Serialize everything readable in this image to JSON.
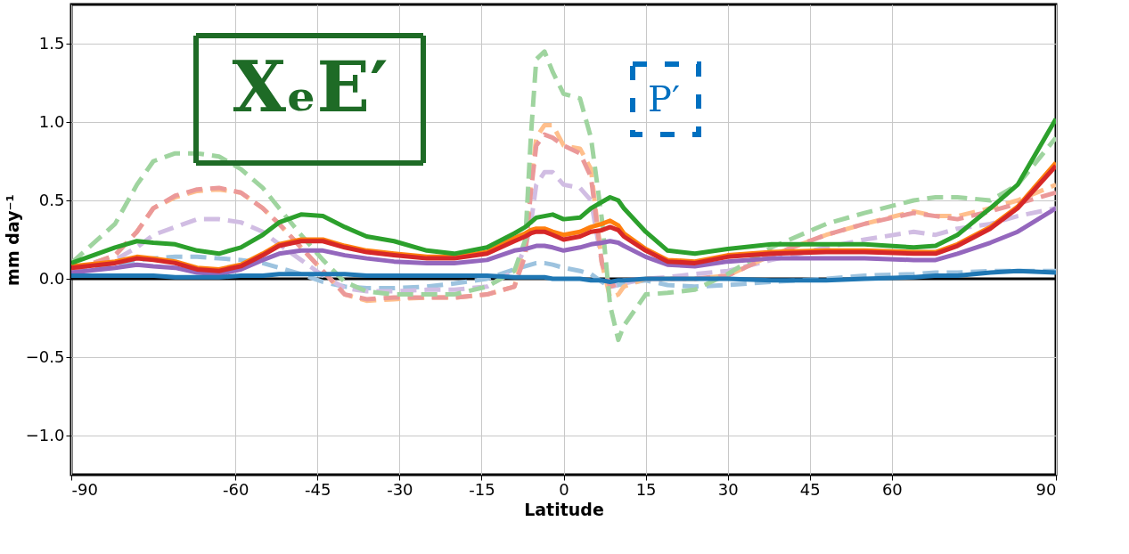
{
  "chart_data": {
    "type": "line",
    "xlabel": "Latitude",
    "ylabel": "mm day⁻¹",
    "annotations": [
      "XₑE′",
      "P′"
    ],
    "x": [
      -90,
      -82,
      -78,
      -75,
      -71,
      -67,
      -63,
      -59,
      -55,
      -52,
      -48,
      -44,
      -40,
      -36,
      -31,
      -25,
      -20,
      -14,
      -9,
      -7,
      -6,
      -5,
      -3.5,
      -2,
      0,
      3,
      5,
      7,
      8.5,
      10,
      11,
      15,
      19,
      24,
      30,
      38,
      48,
      55,
      64,
      68,
      72,
      78,
      83,
      90
    ],
    "xlim": [
      -90,
      90
    ],
    "xticks": [
      -90,
      -60,
      -45,
      -30,
      -15,
      0,
      15,
      30,
      45,
      60,
      90
    ],
    "ylim": [
      -1.25,
      1.75
    ],
    "yticks": [
      {
        "value": -1.0,
        "label": "−1.0"
      },
      {
        "value": -0.5,
        "label": "−0.5"
      },
      {
        "value": 0.0,
        "label": "0.0"
      },
      {
        "value": 0.5,
        "label": "0.5"
      },
      {
        "value": 1.0,
        "label": "1.0"
      },
      {
        "value": 1.5,
        "label": "1.5"
      }
    ],
    "grid": true,
    "ref_lines": [
      {
        "axis": "y",
        "value": 0,
        "color": "#000000"
      }
    ],
    "series": [
      {
        "color": "#9dc3df",
        "line_style": "dashed",
        "values": [
          0.05,
          0.08,
          0.12,
          0.13,
          0.14,
          0.14,
          0.13,
          0.12,
          0.1,
          0.07,
          0.03,
          -0.02,
          -0.05,
          -0.06,
          -0.06,
          -0.05,
          -0.03,
          0.0,
          0.06,
          0.08,
          0.09,
          0.1,
          0.1,
          0.09,
          0.07,
          0.05,
          0.03,
          -0.02,
          -0.05,
          -0.04,
          -0.03,
          -0.01,
          -0.04,
          -0.05,
          -0.04,
          -0.02,
          0.0,
          0.02,
          0.03,
          0.04,
          0.04,
          0.05,
          0.05,
          0.05
        ]
      },
      {
        "color": "#d1bde3",
        "line_style": "dashed",
        "values": [
          0.05,
          0.12,
          0.2,
          0.28,
          0.33,
          0.38,
          0.38,
          0.36,
          0.3,
          0.22,
          0.12,
          0.02,
          -0.06,
          -0.08,
          -0.08,
          -0.07,
          -0.07,
          -0.05,
          0.05,
          0.2,
          0.35,
          0.6,
          0.68,
          0.68,
          0.6,
          0.58,
          0.5,
          0.1,
          -0.05,
          -0.04,
          -0.03,
          0.0,
          0.01,
          0.03,
          0.05,
          0.12,
          0.2,
          0.25,
          0.3,
          0.28,
          0.32,
          0.35,
          0.4,
          0.45
        ]
      },
      {
        "color": "#ffbf8c",
        "line_style": "dashed",
        "values": [
          0.05,
          0.15,
          0.3,
          0.45,
          0.52,
          0.56,
          0.57,
          0.55,
          0.45,
          0.35,
          0.2,
          0.05,
          -0.1,
          -0.14,
          -0.13,
          -0.12,
          -0.12,
          -0.1,
          -0.05,
          0.2,
          0.6,
          0.9,
          0.98,
          0.98,
          0.85,
          0.83,
          0.7,
          0.1,
          -0.12,
          -0.1,
          -0.05,
          0.0,
          0.0,
          0.0,
          0.02,
          0.15,
          0.28,
          0.35,
          0.43,
          0.4,
          0.4,
          0.45,
          0.5,
          0.6
        ]
      },
      {
        "color": "#eb9999",
        "line_style": "dashed",
        "values": [
          0.05,
          0.15,
          0.3,
          0.45,
          0.53,
          0.57,
          0.58,
          0.55,
          0.45,
          0.35,
          0.2,
          0.05,
          -0.1,
          -0.13,
          -0.12,
          -0.12,
          -0.12,
          -0.1,
          -0.05,
          0.15,
          0.55,
          0.85,
          0.92,
          0.9,
          0.85,
          0.8,
          0.65,
          0.1,
          -0.05,
          -0.03,
          -0.01,
          0.0,
          0.0,
          0.0,
          0.02,
          0.15,
          0.28,
          0.35,
          0.42,
          0.4,
          0.38,
          0.43,
          0.48,
          0.55
        ]
      },
      {
        "color": "#9fd49f",
        "line_style": "dashed",
        "values": [
          0.1,
          0.35,
          0.6,
          0.75,
          0.8,
          0.8,
          0.78,
          0.7,
          0.58,
          0.45,
          0.28,
          0.12,
          -0.02,
          -0.08,
          -0.1,
          -0.1,
          -0.1,
          -0.05,
          0.05,
          0.25,
          0.9,
          1.4,
          1.45,
          1.32,
          1.18,
          1.15,
          0.9,
          0.38,
          -0.17,
          -0.39,
          -0.3,
          -0.1,
          -0.09,
          -0.07,
          0.03,
          0.2,
          0.35,
          0.42,
          0.5,
          0.52,
          0.52,
          0.5,
          0.6,
          0.9
        ]
      },
      {
        "color": "#9467bd",
        "line_style": "solid",
        "values": [
          0.04,
          0.07,
          0.09,
          0.08,
          0.07,
          0.04,
          0.03,
          0.06,
          0.12,
          0.16,
          0.18,
          0.18,
          0.15,
          0.13,
          0.11,
          0.1,
          0.1,
          0.12,
          0.18,
          0.19,
          0.2,
          0.21,
          0.21,
          0.2,
          0.18,
          0.2,
          0.22,
          0.23,
          0.24,
          0.23,
          0.21,
          0.14,
          0.09,
          0.08,
          0.11,
          0.13,
          0.13,
          0.13,
          0.12,
          0.12,
          0.16,
          0.23,
          0.3,
          0.45
        ]
      },
      {
        "color": "#ff7f0e",
        "line_style": "solid",
        "values": [
          0.08,
          0.11,
          0.14,
          0.13,
          0.11,
          0.07,
          0.06,
          0.09,
          0.16,
          0.22,
          0.25,
          0.25,
          0.21,
          0.18,
          0.16,
          0.14,
          0.14,
          0.17,
          0.26,
          0.29,
          0.31,
          0.32,
          0.32,
          0.3,
          0.28,
          0.3,
          0.33,
          0.35,
          0.37,
          0.34,
          0.29,
          0.19,
          0.12,
          0.11,
          0.15,
          0.17,
          0.18,
          0.18,
          0.17,
          0.17,
          0.22,
          0.33,
          0.46,
          0.74
        ]
      },
      {
        "color": "#d62728",
        "line_style": "solid",
        "values": [
          0.07,
          0.1,
          0.13,
          0.12,
          0.1,
          0.06,
          0.05,
          0.08,
          0.15,
          0.21,
          0.24,
          0.24,
          0.2,
          0.17,
          0.15,
          0.13,
          0.13,
          0.16,
          0.24,
          0.27,
          0.29,
          0.3,
          0.3,
          0.28,
          0.25,
          0.27,
          0.3,
          0.31,
          0.33,
          0.31,
          0.27,
          0.18,
          0.11,
          0.1,
          0.14,
          0.16,
          0.17,
          0.17,
          0.16,
          0.16,
          0.21,
          0.32,
          0.45,
          0.72
        ]
      },
      {
        "color": "#2ca02c",
        "line_style": "solid",
        "values": [
          0.1,
          0.2,
          0.24,
          0.23,
          0.22,
          0.18,
          0.16,
          0.2,
          0.28,
          0.36,
          0.41,
          0.4,
          0.33,
          0.27,
          0.24,
          0.18,
          0.16,
          0.2,
          0.29,
          0.33,
          0.36,
          0.39,
          0.4,
          0.41,
          0.38,
          0.39,
          0.45,
          0.49,
          0.52,
          0.5,
          0.45,
          0.3,
          0.18,
          0.16,
          0.19,
          0.22,
          0.22,
          0.22,
          0.2,
          0.21,
          0.28,
          0.45,
          0.6,
          1.02
        ]
      },
      {
        "color": "#1f77b4",
        "line_style": "solid",
        "values": [
          0.02,
          0.02,
          0.02,
          0.02,
          0.01,
          0.01,
          0.01,
          0.02,
          0.02,
          0.03,
          0.03,
          0.03,
          0.03,
          0.02,
          0.02,
          0.02,
          0.02,
          0.02,
          0.01,
          0.01,
          0.01,
          0.01,
          0.01,
          0.0,
          0.0,
          0.0,
          -0.01,
          -0.01,
          -0.02,
          -0.01,
          -0.01,
          0.0,
          0.0,
          0.0,
          0.0,
          -0.01,
          -0.01,
          0.0,
          0.01,
          0.02,
          0.02,
          0.04,
          0.05,
          0.04
        ]
      }
    ]
  }
}
